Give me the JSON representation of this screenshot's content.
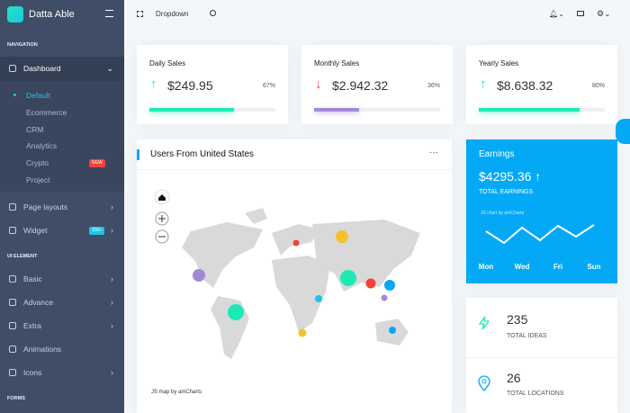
{
  "sidebar": {
    "brand": "Datta Able",
    "sections": [
      {
        "title": "NAVIGATION",
        "items": [
          {
            "label": "Dashboard",
            "children": [
              {
                "label": "Default"
              },
              {
                "label": "Ecommerce"
              },
              {
                "label": "CRM"
              },
              {
                "label": "Analytics"
              },
              {
                "label": "Crypto",
                "badge": "NEW"
              },
              {
                "label": "Project"
              }
            ]
          },
          {
            "label": "Page layouts"
          },
          {
            "label": "Widget",
            "badge": "100+"
          }
        ]
      },
      {
        "title": "UI ELEMENT",
        "items": [
          {
            "label": "Basic"
          },
          {
            "label": "Advance"
          },
          {
            "label": "Extra"
          },
          {
            "label": "Animations"
          },
          {
            "label": "Icons"
          }
        ]
      },
      {
        "title": "FORMS",
        "items": []
      }
    ]
  },
  "topbar": {
    "dropdown": "Dropdown"
  },
  "sales_cards": [
    {
      "title": "Daily Sales",
      "amount": "$249.95",
      "trend": "up",
      "percent": 67,
      "percent_label": "67%",
      "color": "#1de9b6"
    },
    {
      "title": "Monthly Sales",
      "amount": "$2.942.32",
      "trend": "down",
      "percent": 36,
      "percent_label": "36%",
      "color": "#a389d4"
    },
    {
      "title": "Yearly Sales",
      "amount": "$8.638.32",
      "trend": "up",
      "percent": 80,
      "percent_label": "80%",
      "color": "#1de9b6"
    }
  ],
  "map_card": {
    "title": "Users From United States",
    "credit": "JS map by amCharts"
  },
  "earnings_card": {
    "title": "Earnings",
    "amount": "$4295.36",
    "label": "TOTAL EARNINGS",
    "credit": "JS chart by amCharts",
    "chart": {
      "type": "line",
      "categories": [
        "Mon",
        null,
        "Wed",
        null,
        "Fri",
        null,
        "Sun"
      ],
      "values": [
        18,
        5,
        22,
        8,
        24,
        12,
        25
      ],
      "ylim": [
        0,
        30
      ],
      "color": "#ffffff"
    }
  },
  "stats": [
    {
      "value": "235",
      "label": "TOTAL IDEAS"
    },
    {
      "value": "26",
      "label": "TOTAL LOCATIONS"
    }
  ]
}
